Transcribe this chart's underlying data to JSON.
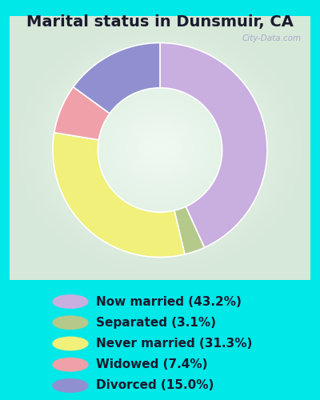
{
  "title": "Marital status in Dunsmuir, CA",
  "slices": [
    43.2,
    3.1,
    31.3,
    7.4,
    15.0
  ],
  "labels": [
    "Now married (43.2%)",
    "Separated (3.1%)",
    "Never married (31.3%)",
    "Widowed (7.4%)",
    "Divorced (15.0%)"
  ],
  "colors": [
    "#c9aee0",
    "#b5c98a",
    "#f0f07a",
    "#f0a0a8",
    "#9090d0"
  ],
  "bg_cyan": "#00e8e8",
  "chart_border_color": "#c8e8d0",
  "title_fontsize": 14,
  "legend_fontsize": 11,
  "watermark": "City-Data.com",
  "start_angle": 90,
  "donut_width": 0.42
}
